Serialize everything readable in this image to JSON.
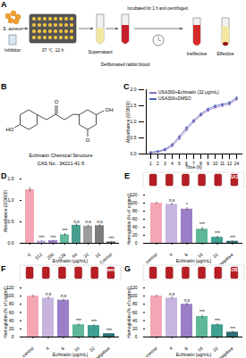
{
  "diagram": {
    "panel": "A",
    "labels": {
      "bacteria": "S. aureus",
      "inhibitor": "Inhibitor",
      "culture": "37 ℃, 12 h",
      "supernatant": "Supernatant",
      "blood": "Defibrinated rabbit blood",
      "incubation": "Incubated for 1 h and centrifuged",
      "ineffective": "Ineffective",
      "effective": "Effective"
    }
  },
  "structure": {
    "panel": "B",
    "atom_labels": [
      "HO",
      "O",
      "O",
      "OH"
    ],
    "title": "Echinatin Chemical Structure",
    "cas": "CAS No.: 34221-41-5"
  },
  "chart_data": [
    {
      "panel": "C",
      "type": "line",
      "x": [
        1,
        2,
        3,
        4,
        5,
        6,
        7,
        8,
        9,
        10,
        11,
        12,
        24
      ],
      "x_label": "Time (h)",
      "y_label": "Absorbance (OD600)",
      "ylim": [
        0,
        2
      ],
      "yticks": [
        {
          "value": 0,
          "label": "0.0"
        },
        {
          "value": 0.5,
          "label": "0.5"
        },
        {
          "value": 1,
          "label": "1.0"
        },
        {
          "value": 1.5,
          "label": "1.5"
        },
        {
          "value": 2,
          "label": "2.0"
        }
      ],
      "legend": "upper left",
      "series": [
        {
          "name": "USA300+Echinatin (32 μg/mL)",
          "color": "#8e6fc1",
          "marker": "circle",
          "values": [
            0.05,
            0.07,
            0.12,
            0.25,
            0.48,
            0.75,
            1.0,
            1.2,
            1.35,
            1.45,
            1.5,
            1.55,
            1.7
          ]
        },
        {
          "name": "USA300+DMSO",
          "color": "#4f66b8",
          "marker": "circle",
          "values": [
            0.05,
            0.08,
            0.15,
            0.3,
            0.55,
            0.82,
            1.05,
            1.25,
            1.4,
            1.5,
            1.55,
            1.6,
            1.75
          ]
        }
      ]
    },
    {
      "panel": "D",
      "type": "bar",
      "categories": [
        "0",
        "512",
        "256",
        "128",
        "64",
        "32",
        "16",
        "Control"
      ],
      "values": [
        1.25,
        0.05,
        0.06,
        0.2,
        0.42,
        0.4,
        0.41,
        0.03
      ],
      "errors": [
        0.05,
        0.01,
        0.01,
        0.03,
        0.03,
        0.03,
        0.03,
        0.01
      ],
      "annotations": [
        "",
        "***",
        "***",
        "***",
        "n.s",
        "n.s",
        "n.s",
        "***"
      ],
      "colors": [
        "#f4a6b5",
        "#b7a5d6",
        "#9a7fc6",
        "#66b99a",
        "#4a9e8e",
        "#9c9c9c",
        "#7d7d7d",
        "#5c5c5c"
      ],
      "x_label": "Echinatin (μg/mL)",
      "y_label": "Absorbance (OD600)",
      "ylim": [
        0,
        1.5
      ],
      "yticks": [
        {
          "value": 0,
          "label": "0.0"
        },
        {
          "value": 0.5,
          "label": "0.5"
        },
        {
          "value": 1,
          "label": "1.0"
        },
        {
          "value": 1.5,
          "label": "1.5"
        }
      ]
    },
    {
      "panel": "E",
      "type": "bar",
      "image_label": "USA300",
      "categories": [
        "control",
        "4",
        "8",
        "16",
        "32",
        "negative"
      ],
      "values": [
        100,
        97,
        85,
        35,
        15,
        5
      ],
      "errors": [
        3,
        3,
        4,
        5,
        3,
        1
      ],
      "annotations": [
        "",
        "n.s",
        "*",
        "***",
        "***",
        "***"
      ],
      "colors": [
        "#f4a6b5",
        "#c7b4df",
        "#9a7fc6",
        "#5fb89a",
        "#3f9f91",
        "#2d6e73"
      ],
      "x_label": "Echinatin (μg/mL)",
      "y_label": "Hemoglobin (% of control)",
      "ylim": [
        0,
        120
      ],
      "yticks": [
        0,
        20,
        40,
        60,
        80,
        100,
        120
      ]
    },
    {
      "panel": "F",
      "type": "bar",
      "image_label": "Newman",
      "categories": [
        "control",
        "4",
        "8",
        "16",
        "32",
        "negative"
      ],
      "values": [
        100,
        95,
        90,
        30,
        28,
        8
      ],
      "errors": [
        3,
        3,
        3,
        3,
        3,
        1
      ],
      "annotations": [
        "",
        "n.s",
        "n.s",
        "***",
        "***",
        "***"
      ],
      "colors": [
        "#f4a6b5",
        "#c7b4df",
        "#9a7fc6",
        "#5fb89a",
        "#3f9f91",
        "#2d6e73"
      ],
      "x_label": "Echinatin (μg/mL)",
      "y_label": "Hemoglobin (% of control)",
      "ylim": [
        0,
        120
      ],
      "yticks": [
        0,
        20,
        40,
        60,
        80,
        100,
        120
      ]
    },
    {
      "panel": "G",
      "type": "bar",
      "image_label": "SA1B3G",
      "categories": [
        "control",
        "4",
        "8",
        "16",
        "32",
        "negative"
      ],
      "values": [
        100,
        95,
        80,
        50,
        30,
        12
      ],
      "errors": [
        3,
        3,
        4,
        4,
        3,
        2
      ],
      "annotations": [
        "",
        "n.s",
        "n.s",
        "***",
        "***",
        "***"
      ],
      "colors": [
        "#f4a6b5",
        "#c7b4df",
        "#9a7fc6",
        "#5fb89a",
        "#3f9f91",
        "#2d6e73"
      ],
      "x_label": "Echinatin (μg/mL)",
      "y_label": "Hemoglobin (% of control)",
      "ylim": [
        0,
        120
      ],
      "yticks": [
        0,
        20,
        40,
        60,
        80,
        100,
        120
      ]
    }
  ]
}
